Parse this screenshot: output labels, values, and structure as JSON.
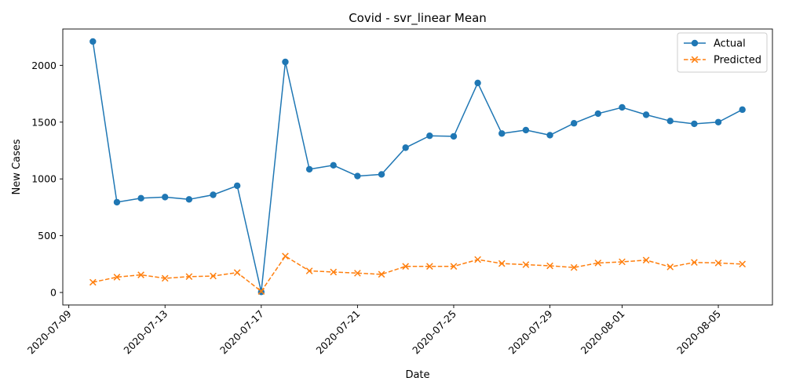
{
  "chart_data": {
    "type": "line",
    "title": "Covid - svr_linear Mean",
    "xlabel": "Date",
    "ylabel": "New Cases",
    "x": [
      "2020-07-10",
      "2020-07-11",
      "2020-07-12",
      "2020-07-13",
      "2020-07-14",
      "2020-07-15",
      "2020-07-16",
      "2020-07-17",
      "2020-07-18",
      "2020-07-19",
      "2020-07-20",
      "2020-07-21",
      "2020-07-22",
      "2020-07-23",
      "2020-07-24",
      "2020-07-25",
      "2020-07-26",
      "2020-07-27",
      "2020-07-28",
      "2020-07-29",
      "2020-07-30",
      "2020-07-31",
      "2020-08-01",
      "2020-08-02",
      "2020-08-03",
      "2020-08-04",
      "2020-08-05",
      "2020-08-06"
    ],
    "series": [
      {
        "name": "Actual",
        "color": "#1f77b4",
        "marker": "circle",
        "linestyle": "solid",
        "values": [
          2210,
          795,
          830,
          840,
          820,
          860,
          940,
          5,
          2030,
          1085,
          1120,
          1025,
          1040,
          1275,
          1380,
          1375,
          1845,
          1400,
          1430,
          1385,
          1490,
          1575,
          1630,
          1565,
          1510,
          1485,
          1500,
          1610
        ]
      },
      {
        "name": "Predicted",
        "color": "#ff7f0e",
        "marker": "x",
        "linestyle": "dashed",
        "values": [
          90,
          135,
          155,
          125,
          140,
          145,
          175,
          10,
          320,
          190,
          180,
          170,
          160,
          230,
          230,
          230,
          290,
          255,
          245,
          235,
          220,
          260,
          270,
          285,
          225,
          265,
          260,
          250
        ]
      }
    ],
    "xticks": [
      "2020-07-09",
      "2020-07-13",
      "2020-07-17",
      "2020-07-21",
      "2020-07-25",
      "2020-07-29",
      "2020-08-01",
      "2020-08-05"
    ],
    "yticks": [
      0,
      500,
      1000,
      1500,
      2000
    ],
    "xlim": [
      "2020-07-08T18:00",
      "2020-08-07T06:00"
    ],
    "ylim": [
      -110,
      2320
    ],
    "legend": "top-right",
    "grid": false
  }
}
